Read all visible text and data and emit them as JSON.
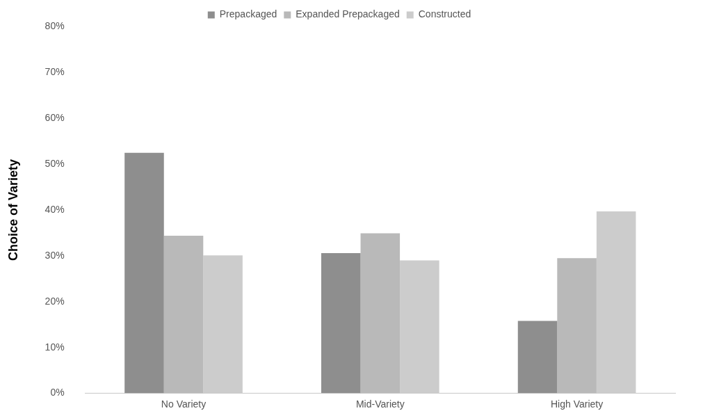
{
  "chart_data": {
    "type": "bar",
    "ylabel": "Choice of Variety",
    "categories": [
      "No Variety",
      "Mid-Variety",
      "High Variety"
    ],
    "series": [
      {
        "name": "Prepackaged",
        "color": "#8e8e8e",
        "values": [
          52.5,
          30.6,
          15.8
        ]
      },
      {
        "name": "Expanded Prepackaged",
        "color": "#b9b9b9",
        "values": [
          34.4,
          34.9,
          29.5
        ]
      },
      {
        "name": "Constructed",
        "color": "#cccccc",
        "values": [
          30.1,
          29.0,
          39.7
        ]
      }
    ],
    "ylim": [
      0,
      80
    ],
    "yticks": [
      {
        "value": 0,
        "label": "0%"
      },
      {
        "value": 10,
        "label": "10%"
      },
      {
        "value": 20,
        "label": "20%"
      },
      {
        "value": 30,
        "label": "30%"
      },
      {
        "value": 40,
        "label": "40%"
      },
      {
        "value": 50,
        "label": "50%"
      },
      {
        "value": 60,
        "label": "60%"
      },
      {
        "value": 70,
        "label": "70%"
      },
      {
        "value": 80,
        "label": "80%"
      }
    ],
    "grid": false,
    "legend": "top"
  }
}
